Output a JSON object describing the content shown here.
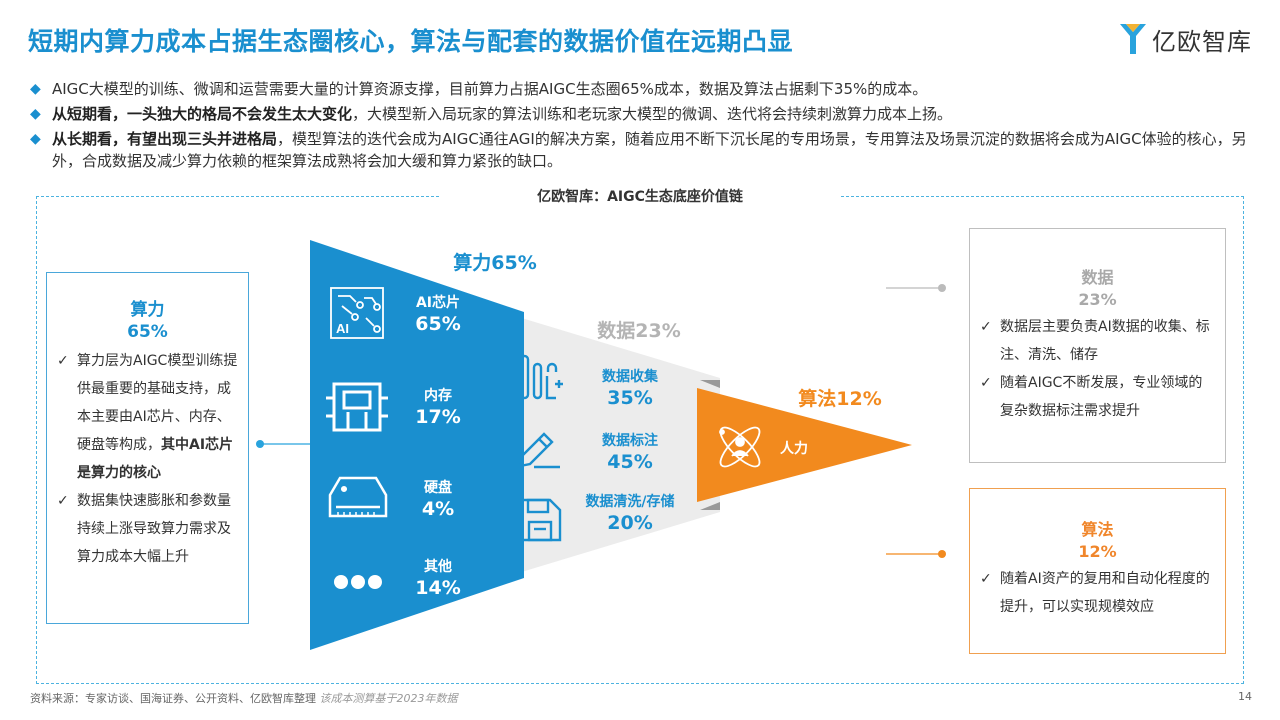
{
  "header": {
    "title": "短期内算力成本占据生态圈核心，算法与配套的数据价值在远期凸显",
    "logo_text": "亿欧智库"
  },
  "bullets": [
    {
      "bold": "",
      "text": "AIGC大模型的训练、微调和运营需要大量的计算资源支撑，目前算力占据AIGC生态圈65%成本，数据及算法占据剩下35%的成本。"
    },
    {
      "bold": "从短期看，一头独大的格局不会发生太大变化",
      "text": "，大模型新入局玩家的算法训练和老玩家大模型的微调、迭代将会持续刺激算力成本上扬。"
    },
    {
      "bold": "从长期看，有望出现三头并进格局",
      "text": "，模型算法的迭代会成为AIGC通往AGI的解决方案，随着应用不断下沉长尾的专用场景，专用算法及场景沉淀的数据将会成为AIGC体验的核心，另外，合成数据及减少算力依赖的框架算法成熟将会加大缓和算力紧张的缺口。"
    }
  ],
  "diagram": {
    "title": "亿欧智库：AIGC生态底座价值链",
    "compute": {
      "label": "算力65%",
      "items": [
        {
          "name": "AI芯片",
          "pct": "65%",
          "icon": "chip-icon"
        },
        {
          "name": "内存",
          "pct": "17%",
          "icon": "memory-icon"
        },
        {
          "name": "硬盘",
          "pct": "4%",
          "icon": "harddisk-icon"
        },
        {
          "name": "其他",
          "pct": "14%",
          "icon": "more-dots-icon"
        }
      ]
    },
    "data": {
      "label": "数据23%",
      "items": [
        {
          "name": "数据收集",
          "pct": "35%",
          "icon": "collect-icon"
        },
        {
          "name": "数据标注",
          "pct": "45%",
          "icon": "pen-icon"
        },
        {
          "name": "数据清洗/存储",
          "pct": "20%",
          "icon": "save-icon"
        }
      ]
    },
    "algorithm": {
      "label": "算法12%",
      "items": [
        {
          "name": "人力",
          "icon": "atom-person-icon"
        }
      ]
    }
  },
  "left_box": {
    "title": "算力",
    "pct": "65%",
    "points": [
      {
        "text": "算力层为AIGC模型训练提供最重要的基础支持，成本主要由AI芯片、内存、硬盘等构成，",
        "bold": "其中AI芯片是算力的核心"
      },
      {
        "text": "数据集快速膨胀和参数量持续上涨导致算力需求及算力成本大幅上升",
        "bold": ""
      }
    ]
  },
  "right_box_data": {
    "title": "数据",
    "pct": "23%",
    "points": [
      "数据层主要负责AI数据的收集、标注、清洗、储存",
      "随着AIGC不断发展，专业领域的复杂数据标注需求提升"
    ]
  },
  "right_box_algo": {
    "title": "算法",
    "pct": "12%",
    "points": [
      "随着AI资产的复用和自动化程度的提升，可以实现规模效应"
    ]
  },
  "footer": {
    "source": "资料来源：专家访谈、国海证券、公开资料、亿欧智库整理",
    "note": "该成本测算基于2023年数据",
    "page": "14"
  },
  "colors": {
    "blue": "#1a8fcf",
    "grey": "#ececec",
    "orange": "#f28a1e"
  }
}
